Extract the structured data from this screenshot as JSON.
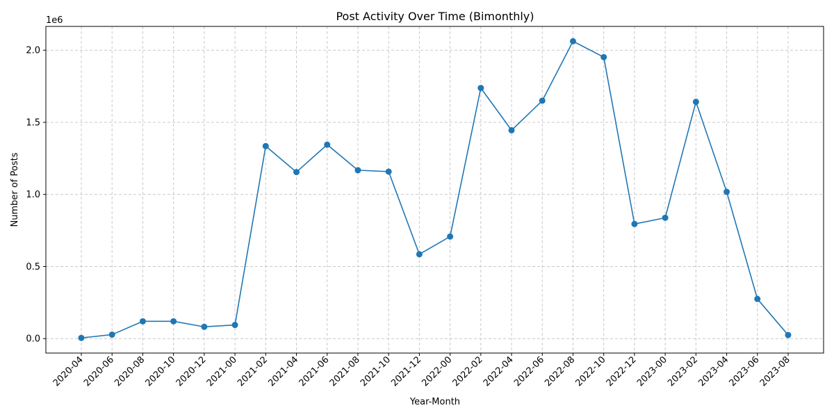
{
  "chart_data": {
    "type": "line",
    "title": "Post Activity Over Time (Bimonthly)",
    "xlabel": "Year-Month",
    "ylabel": "Number of Posts",
    "y_offset_label": "1e6",
    "y_scale": 1000000,
    "ylim": [
      -100000,
      2165000
    ],
    "yticks": [
      0.0,
      0.5,
      1.0,
      1.5,
      2.0
    ],
    "ytick_labels": [
      "0.0",
      "0.5",
      "1.0",
      "1.5",
      "2.0"
    ],
    "grid": true,
    "categories": [
      "2020-04",
      "2020-06",
      "2020-08",
      "2020-10",
      "2020-12",
      "2021-00",
      "2021-02",
      "2021-04",
      "2021-06",
      "2021-08",
      "2021-10",
      "2021-12",
      "2022-00",
      "2022-02",
      "2022-04",
      "2022-06",
      "2022-08",
      "2022-10",
      "2022-12",
      "2023-00",
      "2023-02",
      "2023-04",
      "2023-06",
      "2023-08"
    ],
    "series": [
      {
        "values": [
          5000,
          28000,
          120000,
          120000,
          82000,
          95000,
          1335000,
          1155000,
          1345000,
          1168000,
          1158000,
          585000,
          708000,
          1738000,
          1445000,
          1650000,
          2062000,
          1952000,
          795000,
          838000,
          1642000,
          1018000,
          275000,
          25000
        ]
      }
    ],
    "colors": {
      "line": "#1f77b4",
      "grid": "#c8c8c8",
      "axis": "#000000"
    }
  }
}
